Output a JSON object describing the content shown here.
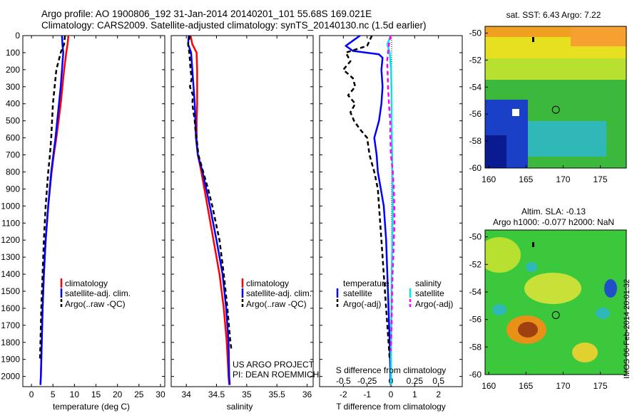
{
  "header": {
    "line1": "Argo profile: AO 1900806_192 31-Jan-2014 20140201_101 55.68S 169.021E",
    "line2": "Climatology: CARS2009. Satellite-adjusted climatology: synTS_20140130.nc (1.5d earlier)"
  },
  "colors": {
    "climatology": "#ff0000",
    "satellite": "#0000ff",
    "argo": "#000000",
    "sat_salinity": "#00e5e5",
    "argo_salinity_diff": "#ff00ff"
  },
  "chart_data": [
    {
      "type": "line",
      "xlabel": "temperature (deg C)",
      "xlim": [
        -2,
        31
      ],
      "xticks": [
        0,
        5,
        10,
        15,
        20,
        25,
        30
      ],
      "ylim": [
        2060,
        0
      ],
      "yticks": [
        0,
        100,
        200,
        300,
        400,
        500,
        600,
        700,
        800,
        900,
        1000,
        1100,
        1200,
        1300,
        1400,
        1500,
        1600,
        1700,
        1800,
        1900,
        2000
      ],
      "legend": [
        "climatology",
        "satellite-adj. clim.",
        "Argo(..raw -QC)"
      ],
      "legend_position": "bottom-right",
      "series": [
        {
          "name": "climatology",
          "depth": [
            0,
            50,
            100,
            200,
            300,
            400,
            500,
            600,
            700,
            800,
            1000,
            1200,
            1400,
            1600,
            1800,
            2000,
            2050
          ],
          "values": [
            8.6,
            8.4,
            8.1,
            7.6,
            7.2,
            6.8,
            6.3,
            5.8,
            5.2,
            4.7,
            3.9,
            3.3,
            2.9,
            2.6,
            2.4,
            2.2,
            2.1
          ]
        },
        {
          "name": "satellite-adj. clim.",
          "depth": [
            0,
            50,
            100,
            200,
            300,
            400,
            500,
            600,
            700,
            800,
            1000,
            1200,
            1400,
            1600,
            1800,
            2000,
            2050
          ],
          "values": [
            7.1,
            7.2,
            7.4,
            7.1,
            6.8,
            6.4,
            6.0,
            5.6,
            5.1,
            4.6,
            3.9,
            3.3,
            2.9,
            2.6,
            2.4,
            2.2,
            2.1
          ]
        },
        {
          "name": "Argo(..raw -QC)",
          "depth": [
            0,
            50,
            100,
            150,
            200,
            250,
            300,
            350,
            400,
            450,
            500,
            550,
            600,
            700,
            800,
            900,
            1000,
            1200,
            1400,
            1600,
            1800,
            1900
          ],
          "values": [
            7.8,
            7.6,
            6.8,
            6.3,
            5.8,
            5.6,
            5.4,
            5.2,
            5.0,
            4.9,
            4.8,
            4.7,
            4.6,
            4.3,
            3.9,
            3.6,
            3.3,
            2.9,
            2.6,
            2.3,
            2.1,
            2.0
          ]
        }
      ]
    },
    {
      "type": "line",
      "xlabel": "salinity",
      "xlim": [
        33.75,
        36.1
      ],
      "xticks": [
        34,
        34.5,
        35,
        35.5,
        36
      ],
      "ylim": [
        2060,
        0
      ],
      "legend": [
        "climatology",
        "satellite-adj. clim.",
        "Argo(..raw -QC)"
      ],
      "legend_position": "bottom-right",
      "annotations": [
        "US ARGO PROJECT",
        "PI: DEAN ROEMMICH"
      ],
      "series": [
        {
          "name": "climatology",
          "depth": [
            0,
            50,
            100,
            200,
            300,
            400,
            500,
            600,
            700,
            800,
            1000,
            1200,
            1400,
            1600,
            1800,
            2000,
            2050
          ],
          "values": [
            34.07,
            34.1,
            34.17,
            34.18,
            34.18,
            34.18,
            34.17,
            34.17,
            34.19,
            34.25,
            34.35,
            34.45,
            34.55,
            34.62,
            34.67,
            34.7,
            34.71
          ]
        },
        {
          "name": "satellite-adj. clim.",
          "depth": [
            0,
            50,
            100,
            200,
            300,
            400,
            500,
            600,
            700,
            800,
            1000,
            1200,
            1400,
            1600,
            1800,
            2000,
            2050
          ],
          "values": [
            34.04,
            34.03,
            34.08,
            34.1,
            34.12,
            34.14,
            34.15,
            34.16,
            34.19,
            34.27,
            34.39,
            34.5,
            34.6,
            34.66,
            34.7,
            34.71,
            34.72
          ]
        },
        {
          "name": "Argo(..raw -QC)",
          "depth": [
            0,
            50,
            100,
            150,
            200,
            250,
            300,
            350,
            400,
            450,
            500,
            550,
            600,
            700,
            800,
            900,
            1000,
            1200,
            1400,
            1600,
            1800,
            1850
          ],
          "values": [
            34.06,
            34.03,
            34.05,
            34.06,
            34.07,
            34.09,
            34.06,
            34.11,
            34.1,
            34.12,
            34.14,
            34.15,
            34.17,
            34.2,
            34.28,
            34.36,
            34.43,
            34.55,
            34.62,
            34.68,
            34.73,
            34.75
          ]
        }
      ]
    },
    {
      "type": "line",
      "xlabel": "T difference from climatology",
      "xlabel_top": "S difference from climatology",
      "xlim": [
        -3,
        3
      ],
      "xticks": [
        -2,
        -1,
        0,
        1,
        2
      ],
      "xticks_top": [
        "-0.5",
        "-0.25",
        "0",
        "0.25",
        "0.5"
      ],
      "ylim": [
        2060,
        0
      ],
      "legend_left_title": "temperature",
      "legend_right_title": "salinity",
      "legend": [
        "satellite",
        "Argo(-adj)",
        "satellite",
        "Argo(-adj)"
      ],
      "series": [
        {
          "name": "satellite",
          "depth": [
            0,
            30,
            60,
            90,
            110,
            130,
            200,
            300,
            400,
            500,
            600,
            700,
            800,
            1000,
            1200,
            1400,
            1600,
            1800,
            2000,
            2050
          ],
          "values": [
            -1.3,
            -1.6,
            -1.9,
            -1.6,
            -0.5,
            -0.35,
            -0.4,
            -0.35,
            -0.4,
            -0.5,
            -0.7,
            -0.6,
            -0.55,
            -0.3,
            -0.2,
            -0.15,
            -0.1,
            -0.05,
            -0.02,
            -0.01
          ]
        },
        {
          "name": "Argo(-adj)",
          "depth": [
            0,
            60,
            100,
            150,
            200,
            250,
            300,
            350,
            400,
            450,
            500,
            550,
            600,
            700,
            800,
            900,
            1000,
            1200,
            1400,
            1600,
            1800,
            1900
          ],
          "values": [
            -0.8,
            -1.0,
            -1.9,
            -1.7,
            -2.0,
            -1.6,
            -1.5,
            -1.8,
            -1.5,
            -1.7,
            -1.55,
            -1.3,
            -1.0,
            -0.9,
            -0.7,
            -0.55,
            -0.5,
            -0.4,
            -0.3,
            -0.2,
            -0.1,
            -0.05
          ]
        },
        {
          "name": "satellite",
          "depth": [
            0,
            50,
            100,
            150,
            200,
            300,
            400,
            500,
            600,
            700,
            800,
            1000,
            1200,
            1400,
            1600,
            1800,
            2000,
            2050
          ],
          "values": [
            0.0,
            -0.15,
            -0.05,
            -0.02,
            0.01,
            0.02,
            0.03,
            0.03,
            0.04,
            0.05,
            0.06,
            0.08,
            0.06,
            0.03,
            0.02,
            0.01,
            0.0,
            0.0
          ]
        },
        {
          "name": "Argo(-adj)",
          "depth": [
            0,
            50,
            100,
            150,
            200,
            300,
            400,
            500,
            600,
            700,
            800,
            900,
            1000,
            1100,
            1200,
            1300,
            1400,
            1500,
            1600,
            1700,
            1800,
            1850
          ],
          "values": [
            -0.02,
            -0.08,
            -0.12,
            -0.16,
            -0.14,
            -0.12,
            -0.08,
            -0.03,
            -0.02,
            0.0,
            0.08,
            0.12,
            0.14,
            0.15,
            0.12,
            0.1,
            0.07,
            0.05,
            0.04,
            0.03,
            0.01,
            0.0
          ]
        }
      ]
    },
    {
      "type": "heatmap",
      "title": "sat. SST: 6.43 Argo: 7.22",
      "xticks": [
        160,
        165,
        170,
        175
      ],
      "yticks": [
        -50,
        -52,
        -54,
        -56,
        -58,
        -60
      ],
      "xlim": [
        159.5,
        178.5
      ],
      "ylim": [
        -60,
        -49.5
      ],
      "marker": {
        "lon": 169.021,
        "lat": -55.68
      }
    },
    {
      "type": "heatmap",
      "title": "Altim. SLA: -0.13",
      "subtitle": "Argo h1000: -0.077 h2000: NaN",
      "xticks": [
        160,
        165,
        170,
        175
      ],
      "yticks": [
        -50,
        -52,
        -54,
        -56,
        -58,
        -60
      ],
      "xlim": [
        159.5,
        178.5
      ],
      "ylim": [
        -60,
        -49.5
      ],
      "marker": {
        "lon": 169.021,
        "lat": -55.68
      }
    }
  ],
  "footer_text": "IMOS 06-Feb-2014 20:01:32"
}
